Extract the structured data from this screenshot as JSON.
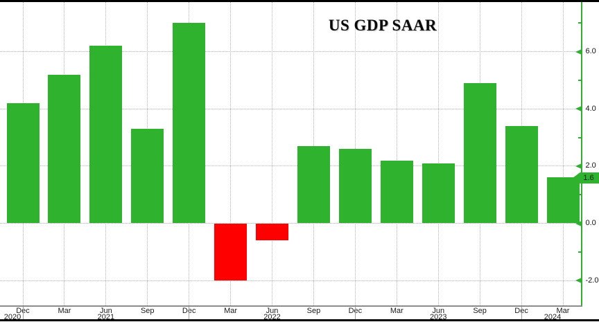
{
  "title": "US GDP SAAR",
  "latest_tag": {
    "label": "1.6"
  },
  "colors": {
    "positive_bar": "#2fb32f",
    "negative_bar": "#ff0000",
    "axis_green": "#2fae2f",
    "grid": "#b4b4b4",
    "x_axis_line": "#8c8c8c",
    "border": "#000000",
    "label_text": "#1a1a1a"
  },
  "y_axis": {
    "major_ticks": [
      {
        "label": "6.0",
        "value": 6
      },
      {
        "label": "4.0",
        "value": 4
      },
      {
        "label": "2.0",
        "value": 2
      },
      {
        "label": "0.0",
        "value": 0
      },
      {
        "label": "-2.0",
        "value": -2
      }
    ],
    "minor_tick_values": [
      7,
      5,
      3,
      1,
      -1
    ]
  },
  "x_axis": {
    "months": [
      "Dec",
      "Mar",
      "Jun",
      "Sep",
      "Dec",
      "Mar",
      "Jun",
      "Sep",
      "Dec",
      "Mar",
      "Jun",
      "Sep",
      "Dec",
      "Mar"
    ],
    "years": [
      {
        "label": "2020",
        "tick_index": 0,
        "dx": -15
      },
      {
        "label": "2021",
        "tick_index": 2,
        "dx": 0
      },
      {
        "label": "2022",
        "tick_index": 6,
        "dx": 0
      },
      {
        "label": "2023",
        "tick_index": 10,
        "dx": 0
      },
      {
        "label": "2024",
        "tick_index": 13,
        "dx": -15
      }
    ],
    "year_separator_tick_indices": [
      0,
      4,
      8,
      12
    ]
  },
  "chart_data": {
    "type": "bar",
    "title": "US GDP SAAR",
    "categories": [
      "Dec 2020",
      "Mar 2021",
      "Jun 2021",
      "Sep 2021",
      "Dec 2021",
      "Mar 2022",
      "Jun 2022",
      "Sep 2022",
      "Dec 2022",
      "Mar 2023",
      "Jun 2023",
      "Sep 2023",
      "Dec 2023",
      "Mar 2024"
    ],
    "values": [
      4.2,
      5.2,
      6.2,
      3.3,
      7.0,
      -2.0,
      -0.6,
      2.7,
      2.6,
      2.2,
      2.1,
      4.9,
      3.4,
      1.6
    ],
    "xlabel": "",
    "ylabel": "",
    "ylim": [
      -2.9,
      7.8
    ],
    "grid": true,
    "gridline_values": [
      6,
      4,
      2,
      0,
      -2
    ],
    "legend": "none",
    "bar_color_rule": "green if value >= 0 else red",
    "highlighted_last_value": 1.6
  }
}
